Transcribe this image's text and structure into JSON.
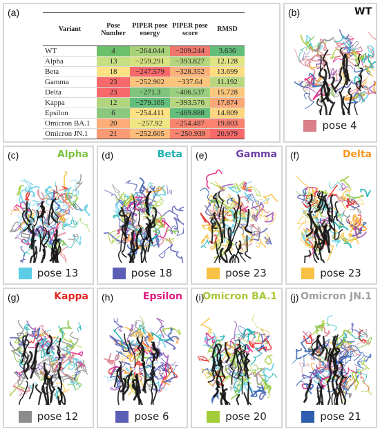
{
  "panel_a": {
    "letter": "(a)",
    "headers": [
      "Variant",
      "Pose Number",
      "PIPER pose energy",
      "PIPER pose score",
      "RMSD"
    ],
    "rows": [
      {
        "variant": "WT",
        "pose": "4",
        "energy": "−264.044",
        "score": "−209.244",
        "rmsd": "3.636",
        "c_pose": "#6cc06a",
        "c_energy": "#a8d27a",
        "c_score": "#f0776c",
        "c_rmsd": "#63be7b"
      },
      {
        "variant": "Alpha",
        "pose": "13",
        "energy": "−259.291",
        "score": "−393.827",
        "rmsd": "12.128",
        "c_pose": "#c5df82",
        "c_energy": "#d6e480",
        "c_score": "#b5d67e",
        "c_rmsd": "#e2e583"
      },
      {
        "variant": "Beta",
        "pose": "18",
        "energy": "−247.579",
        "score": "−328.352",
        "rmsd": "13.699",
        "c_pose": "#fee182",
        "c_energy": "#f8696b",
        "c_score": "#fcb07a",
        "c_rmsd": "#fedd81"
      },
      {
        "variant": "Gamma",
        "pose": "23",
        "energy": "−252.902",
        "score": "−337.64",
        "rmsd": "11.192",
        "c_pose": "#f8696b",
        "c_energy": "#fdc47d",
        "c_score": "#fdc67d",
        "c_rmsd": "#b9d780"
      },
      {
        "variant": "Delta",
        "pose": "23",
        "energy": "−271.3",
        "score": "−406.537",
        "rmsd": "15.728",
        "c_pose": "#f8696b",
        "c_energy": "#7fc67c",
        "c_score": "#9acf7f",
        "c_rmsd": "#fdc87d"
      },
      {
        "variant": "Kappa",
        "pose": "12",
        "energy": "−279.165",
        "score": "−393.576",
        "rmsd": "17.874",
        "c_pose": "#b1d57f",
        "c_energy": "#63be7b",
        "c_score": "#b5d67e",
        "c_rmsd": "#fba777"
      },
      {
        "variant": "Epsilon",
        "pose": "6",
        "energy": "−254.411",
        "score": "−469.888",
        "rmsd": "14.809",
        "c_pose": "#8ac97d",
        "c_energy": "#fee182",
        "c_score": "#63be7b",
        "c_rmsd": "#fed580"
      },
      {
        "variant": "Omicron BA.1",
        "pose": "20",
        "energy": "−257.92",
        "score": "−254.487",
        "rmsd": "19.803",
        "c_pose": "#fcad78",
        "c_energy": "#f1e683",
        "c_score": "#f98570",
        "c_rmsd": "#f98370"
      },
      {
        "variant": "Omicron JN.1",
        "pose": "21",
        "energy": "−252.605",
        "score": "− 250.939",
        "rmsd": "20.979",
        "c_pose": "#fb9a74",
        "c_energy": "#fcbd7b",
        "c_score": "#f98370",
        "c_rmsd": "#f8696b"
      }
    ]
  },
  "panels": [
    {
      "id": "b",
      "letter": "(b)",
      "title": "WT",
      "title_color": "#111111",
      "legend": "pose 4",
      "swatch": "#d98088"
    },
    {
      "id": "c",
      "letter": "(c)",
      "title": "Alpha",
      "title_color": "#7cc242",
      "legend": "pose 13",
      "swatch": "#5ccde6"
    },
    {
      "id": "d",
      "letter": "(d)",
      "title": "Beta",
      "title_color": "#1ab0b0",
      "legend": "pose 18",
      "swatch": "#5a5fb5"
    },
    {
      "id": "e",
      "letter": "(e)",
      "title": "Gamma",
      "title_color": "#6e3fa5",
      "legend": "pose 23",
      "swatch": "#f7c244"
    },
    {
      "id": "f",
      "letter": "(f)",
      "title": "Delta",
      "title_color": "#f7941d",
      "legend": "pose 23",
      "swatch": "#f7c244"
    },
    {
      "id": "g",
      "letter": "(g)",
      "title": "Kappa",
      "title_color": "#e52520",
      "legend": "pose 12",
      "swatch": "#8c8c8c"
    },
    {
      "id": "h",
      "letter": "(h)",
      "title": "Epsilon",
      "title_color": "#e0197d",
      "legend": "pose 6",
      "swatch": "#5a5fb5"
    },
    {
      "id": "i",
      "letter": "(i)",
      "title": "Omicron BA.1",
      "title_color": "#a8c83a",
      "legend": "pose 20",
      "swatch": "#a3cc39"
    },
    {
      "id": "j",
      "letter": "(j)",
      "title": "Omicron JN.1",
      "title_color": "#a0a0a0",
      "legend": "pose 21",
      "swatch": "#2d5eb0"
    }
  ]
}
